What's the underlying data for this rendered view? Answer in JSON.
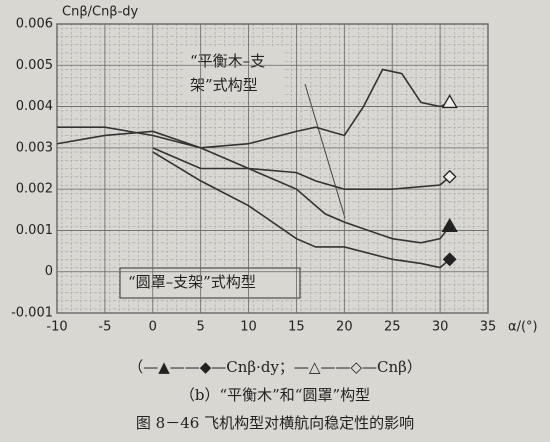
{
  "chart_data": {
    "type": "line",
    "y_label": "Cnβ/Cnβ-dy",
    "x_label": "α/(°)",
    "annotations": [
      "“平衡木–支",
      "架”式构型",
      "“圆罩–支架”式构型"
    ],
    "legend_text": "（—▲——◆—Cnβ·dy；—△——◇—Cnβ）",
    "subcaption": "（b）“平衡木”和“圆罩”构型",
    "caption": "图 8－46   飞机构型对横航向稳定性的影响",
    "xlim": [
      -10,
      35
    ],
    "xticks": [
      -10,
      -5,
      0,
      5,
      10,
      15,
      20,
      25,
      30,
      35
    ],
    "ylim": [
      -0.001,
      0.006
    ],
    "yticks": [
      -0.001,
      0,
      0.001,
      0.002,
      0.003,
      0.004,
      0.005,
      0.006
    ],
    "grid": true,
    "series": [
      {
        "color": "#333333",
        "marker": "triangle-filled",
        "x": [
          -10,
          -5,
          0,
          5,
          10,
          15,
          18,
          20,
          25,
          28,
          30,
          31
        ],
        "values": [
          0.0031,
          0.0033,
          0.0034,
          0.003,
          0.0025,
          0.002,
          0.0014,
          0.0012,
          0.0008,
          0.0007,
          0.0008,
          0.0011
        ]
      },
      {
        "color": "#333333",
        "marker": "diamond-filled",
        "x": [
          0,
          5,
          10,
          15,
          17,
          20,
          25,
          28,
          30,
          31
        ],
        "values": [
          0.0029,
          0.0022,
          0.0016,
          0.0008,
          0.0006,
          0.0006,
          0.0003,
          0.0002,
          0.0001,
          0.0003
        ]
      },
      {
        "color": "#333333",
        "marker": "triangle-open",
        "x": [
          -10,
          -5,
          0,
          5,
          10,
          15,
          17,
          20,
          22,
          24,
          26,
          28,
          30,
          31
        ],
        "values": [
          0.0035,
          0.0035,
          0.0033,
          0.003,
          0.0031,
          0.0034,
          0.0035,
          0.0033,
          0.004,
          0.0049,
          0.0048,
          0.0041,
          0.004,
          0.0041
        ]
      },
      {
        "color": "#333333",
        "marker": "diamond-open",
        "x": [
          0,
          3,
          5,
          10,
          15,
          17,
          20,
          25,
          30,
          31
        ],
        "values": [
          0.003,
          0.0027,
          0.0025,
          0.0025,
          0.0024,
          0.0022,
          0.002,
          0.002,
          0.0021,
          0.0023
        ]
      }
    ]
  }
}
